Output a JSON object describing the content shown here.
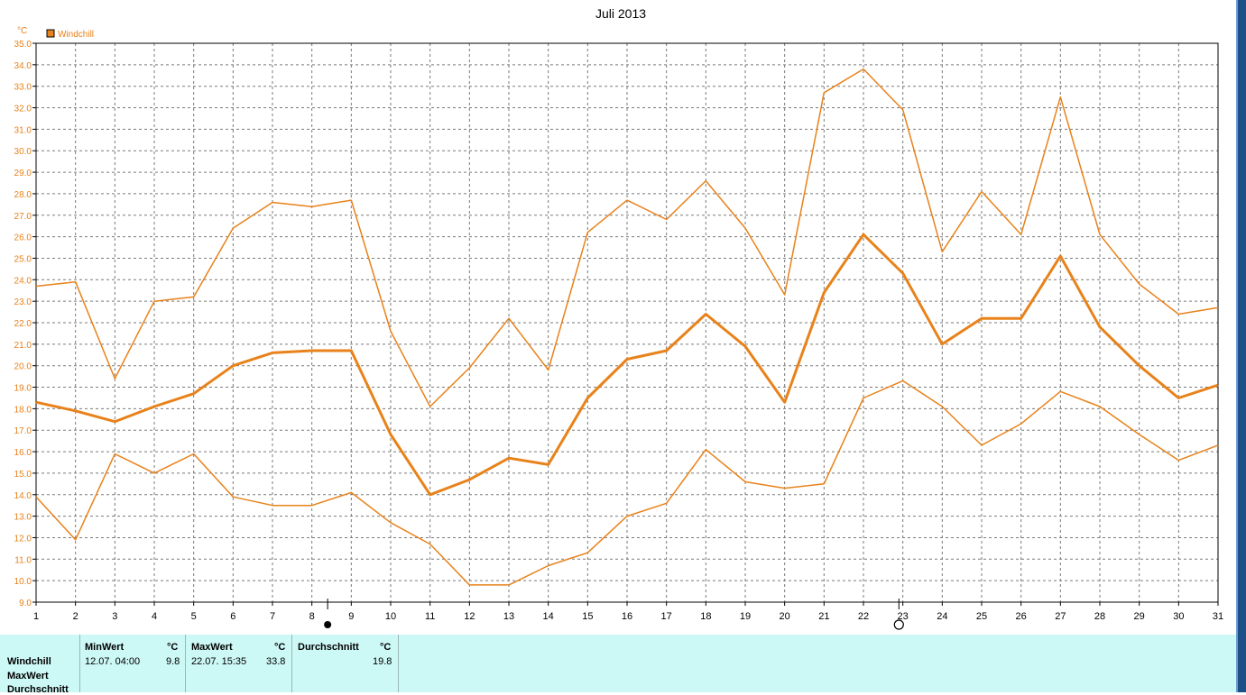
{
  "chart_data": {
    "type": "line",
    "title": "Juli 2013",
    "unit": "°C",
    "legend": {
      "label": "Windchill",
      "color": "#e8821a"
    },
    "xlim": [
      1,
      31
    ],
    "ylim": [
      9.0,
      35.0
    ],
    "y_ticks": [
      "9.0",
      "10.0",
      "11.0",
      "12.0",
      "13.0",
      "14.0",
      "15.0",
      "16.0",
      "17.0",
      "18.0",
      "19.0",
      "20.0",
      "21.0",
      "22.0",
      "23.0",
      "24.0",
      "25.0",
      "26.0",
      "27.0",
      "28.0",
      "29.0",
      "30.0",
      "31.0",
      "32.0",
      "33.0",
      "34.0",
      "35.0"
    ],
    "x": [
      1,
      2,
      3,
      4,
      5,
      6,
      7,
      8,
      9,
      10,
      11,
      12,
      13,
      14,
      15,
      16,
      17,
      18,
      19,
      20,
      21,
      22,
      23,
      24,
      25,
      26,
      27,
      28,
      29,
      30,
      31
    ],
    "x_ticks": [
      "1",
      "2",
      "3",
      "4",
      "5",
      "6",
      "7",
      "8",
      "9",
      "10",
      "11",
      "12",
      "13",
      "14",
      "15",
      "16",
      "17",
      "18",
      "19",
      "20",
      "21",
      "22",
      "23",
      "24",
      "25",
      "26",
      "27",
      "28",
      "29",
      "30",
      "31"
    ],
    "grid": true,
    "series": [
      {
        "id": "max",
        "values": [
          23.7,
          23.9,
          19.4,
          23.0,
          23.2,
          26.4,
          27.6,
          27.4,
          27.7,
          21.6,
          18.1,
          19.9,
          22.2,
          19.8,
          26.2,
          27.7,
          26.8,
          28.6,
          26.4,
          23.3,
          32.7,
          33.8,
          31.9,
          25.3,
          28.1,
          26.1,
          32.5,
          26.1,
          23.8,
          22.4,
          22.7
        ],
        "stroke": 1.5
      },
      {
        "id": "avg",
        "values": [
          18.3,
          17.9,
          17.4,
          18.1,
          18.7,
          20.0,
          20.6,
          20.7,
          20.7,
          16.8,
          14.0,
          14.7,
          15.7,
          15.4,
          18.5,
          20.3,
          20.7,
          22.4,
          20.9,
          18.3,
          23.4,
          26.1,
          24.3,
          21.0,
          22.2,
          22.2,
          25.1,
          21.8,
          20.0,
          18.5,
          19.1
        ],
        "stroke": 3
      },
      {
        "id": "min",
        "values": [
          13.9,
          11.9,
          15.9,
          15.0,
          15.9,
          13.9,
          13.5,
          13.5,
          14.1,
          12.7,
          11.7,
          9.8,
          9.8,
          10.7,
          11.3,
          13.0,
          13.6,
          16.1,
          14.6,
          14.3,
          14.5,
          18.5,
          19.3,
          18.1,
          16.3,
          17.3,
          18.8,
          18.1,
          16.8,
          15.6,
          16.3
        ],
        "stroke": 1.5
      }
    ],
    "moon_markers": [
      {
        "day": 8.4,
        "phase": "new-moon"
      },
      {
        "day": 22.9,
        "phase": "full-moon"
      }
    ]
  },
  "summary": {
    "row_labels": [
      "Windchill",
      "MaxWert",
      "Durchschnitt"
    ],
    "columns": [
      {
        "header": "MinWert",
        "unit": "°C",
        "datetime": "12.07.  04:00",
        "value": "9.8"
      },
      {
        "header": "MaxWert",
        "unit": "°C",
        "datetime": "22.07.  15:35",
        "value": "33.8"
      },
      {
        "header": "Durchschnitt",
        "unit": "°C",
        "datetime": "",
        "value": "19.8"
      }
    ]
  }
}
